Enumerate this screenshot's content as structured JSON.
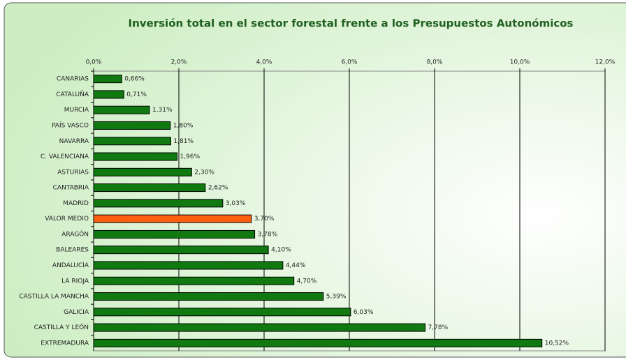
{
  "chart_data": {
    "type": "barh",
    "title": "Inversión total en el sector forestal frente a los Presupuestos Autonómicos",
    "categories": [
      "CANARIAS",
      "CATALUÑA",
      "MURCIA",
      "PAÍS VASCO",
      "NAVARRA",
      "C. VALENCIANA",
      "ASTURIAS",
      "CANTABRIA",
      "MADRID",
      "VALOR MEDIO",
      "ARAGÓN",
      "BALEARES",
      "ANDALUCÍA",
      "LA RIOJA",
      "CASTILLA LA MANCHA",
      "GALICIA",
      "CASTILLA Y LEÓN",
      "EXTREMADURA"
    ],
    "values": [
      0.66,
      0.71,
      1.31,
      1.8,
      1.81,
      1.96,
      2.3,
      2.62,
      3.03,
      3.7,
      3.78,
      4.1,
      4.44,
      4.7,
      5.39,
      6.03,
      7.78,
      10.52
    ],
    "value_labels": [
      "0,66%",
      "0,71%",
      "1,31%",
      "1,80%",
      "1,81%",
      "1,96%",
      "2,30%",
      "2,62%",
      "3,03%",
      "3,70%",
      "3,78%",
      "4,10%",
      "4,44%",
      "4,70%",
      "5,39%",
      "6,03%",
      "7,78%",
      "10,52%"
    ],
    "colors": [
      "#107a10",
      "#107a10",
      "#107a10",
      "#107a10",
      "#107a10",
      "#107a10",
      "#107a10",
      "#107a10",
      "#107a10",
      "#ff6010",
      "#107a10",
      "#107a10",
      "#107a10",
      "#107a10",
      "#107a10",
      "#107a10",
      "#107a10",
      "#107a10"
    ],
    "xlim": [
      0,
      12
    ],
    "xticks": [
      {
        "value": 0,
        "label": "0,0%"
      },
      {
        "value": 2,
        "label": "2,0%"
      },
      {
        "value": 4,
        "label": "4,0%"
      },
      {
        "value": 6,
        "label": "6,0%"
      },
      {
        "value": 8,
        "label": "8,0%"
      },
      {
        "value": 10,
        "label": "10,0%"
      },
      {
        "value": 12,
        "label": "12,0%"
      }
    ],
    "grid": true
  }
}
